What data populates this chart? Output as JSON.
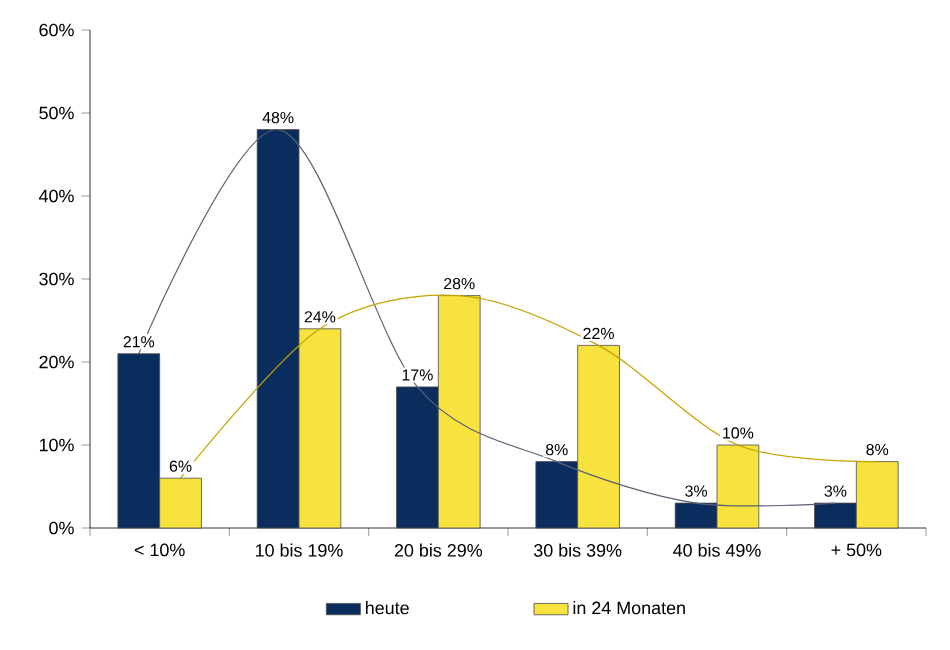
{
  "chart_data": {
    "type": "bar",
    "categories": [
      "< 10%",
      "10 bis 19%",
      "20 bis 29%",
      "30 bis 39%",
      "40 bis 49%",
      "+ 50%"
    ],
    "series": [
      {
        "name": "heute",
        "color": "#0b2d5e",
        "values": [
          21,
          48,
          17,
          8,
          3,
          3
        ],
        "value_labels": [
          "21%",
          "48%",
          "17%",
          "8%",
          "3%",
          "3%"
        ]
      },
      {
        "name": "in 24 Monaten",
        "color": "#f7e23e",
        "values": [
          6,
          24,
          28,
          22,
          10,
          8
        ],
        "value_labels": [
          "6%",
          "24%",
          "28%",
          "22%",
          "10%",
          "8%"
        ]
      },
      {
        "type": "line",
        "color": "#5a6173",
        "values": [
          21,
          48,
          17,
          8,
          3,
          3
        ]
      },
      {
        "type": "line",
        "color": "#c4a400",
        "values": [
          6,
          24,
          28,
          22,
          10,
          8
        ]
      }
    ],
    "ylim": [
      0,
      60
    ],
    "yticks": [
      {
        "value": 0,
        "label": "0%"
      },
      {
        "value": 10,
        "label": "10%"
      },
      {
        "value": 20,
        "label": "20%"
      },
      {
        "value": 30,
        "label": "30%"
      },
      {
        "value": 40,
        "label": "40%"
      },
      {
        "value": 50,
        "label": "50%"
      },
      {
        "value": 60,
        "label": "60%"
      }
    ],
    "legend": "bottom"
  }
}
